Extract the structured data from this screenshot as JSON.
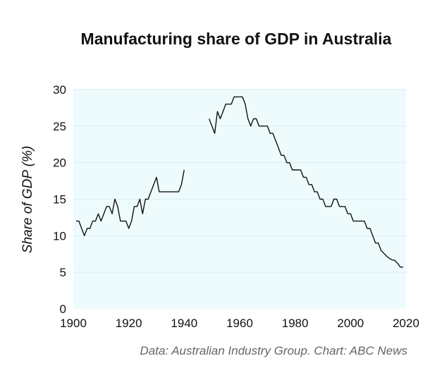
{
  "chart_data": {
    "type": "line",
    "title": "Manufacturing share of GDP in Australia",
    "xlabel": "",
    "ylabel": "Share of GDP (%)",
    "source": "Data: Australian Industry Group. Chart: ABC News",
    "xlim": [
      1900,
      2020
    ],
    "ylim": [
      0,
      30
    ],
    "x_ticks": [
      1900,
      1920,
      1940,
      1960,
      1980,
      2000,
      2020
    ],
    "y_ticks": [
      0,
      5,
      10,
      15,
      20,
      25,
      30
    ],
    "grid": true,
    "colors": {
      "line": "#111111",
      "plot_bg": "#eefbfd",
      "grid": "#d6eef2"
    },
    "series": [
      {
        "segments": [
          [
            [
              1901,
              12
            ],
            [
              1902,
              12
            ],
            [
              1903,
              11
            ],
            [
              1904,
              10
            ],
            [
              1905,
              11
            ],
            [
              1906,
              11
            ],
            [
              1907,
              12
            ],
            [
              1908,
              12
            ],
            [
              1909,
              13
            ],
            [
              1910,
              12
            ],
            [
              1911,
              13
            ],
            [
              1912,
              14
            ],
            [
              1913,
              14
            ],
            [
              1914,
              13
            ],
            [
              1915,
              15
            ],
            [
              1916,
              14
            ],
            [
              1917,
              12
            ],
            [
              1918,
              12
            ],
            [
              1919,
              12
            ],
            [
              1920,
              11
            ],
            [
              1921,
              12
            ],
            [
              1922,
              14
            ],
            [
              1923,
              14
            ],
            [
              1924,
              15
            ],
            [
              1925,
              13
            ],
            [
              1926,
              15
            ],
            [
              1927,
              15
            ],
            [
              1928,
              16
            ],
            [
              1929,
              17
            ],
            [
              1930,
              18
            ],
            [
              1931,
              16
            ],
            [
              1932,
              16
            ],
            [
              1933,
              16
            ],
            [
              1934,
              16
            ],
            [
              1935,
              16
            ],
            [
              1936,
              16
            ],
            [
              1937,
              16
            ],
            [
              1938,
              16
            ],
            [
              1939,
              17
            ],
            [
              1940,
              19
            ]
          ],
          [
            [
              1949,
              26
            ],
            [
              1950,
              25
            ],
            [
              1951,
              24
            ],
            [
              1952,
              27
            ],
            [
              1953,
              26
            ],
            [
              1954,
              27
            ],
            [
              1955,
              28
            ],
            [
              1956,
              28
            ],
            [
              1957,
              28
            ],
            [
              1958,
              29
            ],
            [
              1959,
              29
            ],
            [
              1960,
              29
            ],
            [
              1961,
              29
            ],
            [
              1962,
              28
            ],
            [
              1963,
              26
            ],
            [
              1964,
              25
            ],
            [
              1965,
              26
            ],
            [
              1966,
              26
            ],
            [
              1967,
              25
            ],
            [
              1968,
              25
            ],
            [
              1969,
              25
            ],
            [
              1970,
              25
            ],
            [
              1971,
              24
            ],
            [
              1972,
              24
            ],
            [
              1973,
              23
            ],
            [
              1974,
              22
            ],
            [
              1975,
              21
            ],
            [
              1976,
              21
            ],
            [
              1977,
              20
            ],
            [
              1978,
              20
            ],
            [
              1979,
              19
            ],
            [
              1980,
              19
            ],
            [
              1981,
              19
            ],
            [
              1982,
              19
            ],
            [
              1983,
              18
            ],
            [
              1984,
              18
            ],
            [
              1985,
              17
            ],
            [
              1986,
              17
            ],
            [
              1987,
              16
            ],
            [
              1988,
              16
            ],
            [
              1989,
              15
            ],
            [
              1990,
              15
            ],
            [
              1991,
              14
            ],
            [
              1992,
              14
            ],
            [
              1993,
              14
            ],
            [
              1994,
              15
            ],
            [
              1995,
              15
            ],
            [
              1996,
              14
            ],
            [
              1997,
              14
            ],
            [
              1998,
              14
            ],
            [
              1999,
              13
            ],
            [
              2000,
              13
            ],
            [
              2001,
              12
            ],
            [
              2002,
              12
            ],
            [
              2003,
              12
            ],
            [
              2004,
              12
            ],
            [
              2005,
              12
            ],
            [
              2006,
              11
            ],
            [
              2007,
              11
            ],
            [
              2008,
              10
            ],
            [
              2009,
              9
            ],
            [
              2010,
              9
            ],
            [
              2011,
              8
            ],
            [
              2012,
              7.6
            ],
            [
              2013,
              7.2
            ],
            [
              2014,
              6.9
            ],
            [
              2015,
              6.7
            ],
            [
              2016,
              6.6
            ],
            [
              2017,
              6.2
            ],
            [
              2018,
              5.7
            ],
            [
              2019,
              5.7
            ]
          ]
        ]
      }
    ]
  }
}
